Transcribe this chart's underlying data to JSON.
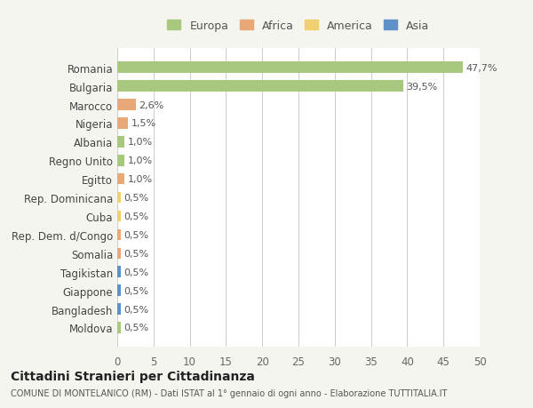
{
  "countries": [
    "Romania",
    "Bulgaria",
    "Marocco",
    "Nigeria",
    "Albania",
    "Regno Unito",
    "Egitto",
    "Rep. Dominicana",
    "Cuba",
    "Rep. Dem. d/Congo",
    "Somalia",
    "Tagikistan",
    "Giappone",
    "Bangladesh",
    "Moldova"
  ],
  "values": [
    47.7,
    39.5,
    2.6,
    1.5,
    1.0,
    1.0,
    1.0,
    0.5,
    0.5,
    0.5,
    0.5,
    0.5,
    0.5,
    0.5,
    0.5
  ],
  "labels": [
    "47,7%",
    "39,5%",
    "2,6%",
    "1,5%",
    "1,0%",
    "1,0%",
    "1,0%",
    "0,5%",
    "0,5%",
    "0,5%",
    "0,5%",
    "0,5%",
    "0,5%",
    "0,5%",
    "0,5%"
  ],
  "colors": [
    "#a8c880",
    "#a8c880",
    "#e8a878",
    "#e8a878",
    "#a8c880",
    "#a8c880",
    "#e8a878",
    "#f0d070",
    "#f0d070",
    "#e8a878",
    "#e8a878",
    "#6090c8",
    "#6090c8",
    "#6090c8",
    "#a8c880"
  ],
  "legend_labels": [
    "Europa",
    "Africa",
    "America",
    "Asia"
  ],
  "legend_colors": [
    "#a8c880",
    "#e8a878",
    "#f0d070",
    "#6090c8"
  ],
  "title": "Cittadini Stranieri per Cittadinanza",
  "subtitle": "COMUNE DI MONTELANICO (RM) - Dati ISTAT al 1° gennaio di ogni anno - Elaborazione TUTTITALIA.IT",
  "xlim": [
    0,
    50
  ],
  "xticks": [
    0,
    5,
    10,
    15,
    20,
    25,
    30,
    35,
    40,
    45,
    50
  ],
  "bg_color": "#f5f5f0",
  "plot_bg_color": "#ffffff"
}
